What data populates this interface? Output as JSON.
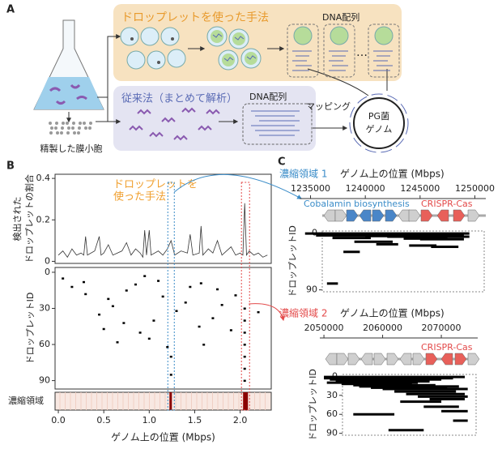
{
  "panel_labels": {
    "a": "A",
    "b": "B",
    "c": "C"
  },
  "panel_a": {
    "droplet_method": "ドロップレットを使った手法",
    "dna_seq_1": "DNA配列",
    "ellipsis": "…",
    "conventional": "従来法（まとめて解析）",
    "dna_seq_2": "DNA配列",
    "mapping": "マッピング",
    "genome_1": "PG菌",
    "genome_2": "ゲノム",
    "vesicles": "精製した膜小胞"
  },
  "chart_data": [
    {
      "type": "line",
      "y_label": [
        "検出された",
        "ドロップレットの割合"
      ],
      "annotation": [
        "ドロップレットを",
        "使った手法"
      ],
      "color": "#333333",
      "x": [
        0,
        0.05,
        0.1,
        0.15,
        0.2,
        0.25,
        0.28,
        0.3,
        0.32,
        0.4,
        0.45,
        0.47,
        0.5,
        0.55,
        0.6,
        0.7,
        0.75,
        0.8,
        0.85,
        0.9,
        0.93,
        0.95,
        0.97,
        1.0,
        1.02,
        1.1,
        1.15,
        1.2,
        1.24,
        1.28,
        1.35,
        1.42,
        1.45,
        1.48,
        1.55,
        1.57,
        1.59,
        1.65,
        1.7,
        1.75,
        1.8,
        1.85,
        1.9,
        1.95,
        2.0,
        2.03,
        2.05,
        2.07,
        2.1,
        2.15,
        2.2,
        2.25,
        2.3
      ],
      "values": [
        0.03,
        0.05,
        0.02,
        0.06,
        0.03,
        0.04,
        0.03,
        0.12,
        0.03,
        0.05,
        0.12,
        0.03,
        0.04,
        0.08,
        0.03,
        0.05,
        0.09,
        0.03,
        0.06,
        0.04,
        0.02,
        0.15,
        0.03,
        0.15,
        0.03,
        0.05,
        0.03,
        0.06,
        0.1,
        0.03,
        0.05,
        0.04,
        0.13,
        0.03,
        0.04,
        0.17,
        0.03,
        0.06,
        0.04,
        0.1,
        0.03,
        0.05,
        0.07,
        0.03,
        0.04,
        0.03,
        0.28,
        0.03,
        0.05,
        0.03,
        0.04,
        0.02,
        0.03
      ],
      "xlim": [
        -0.036,
        2.342
      ],
      "ylim": [
        -0.01,
        0.42
      ],
      "yticks": [
        0,
        0.2,
        0.4
      ]
    },
    {
      "type": "scatter",
      "y_label": "ドロップレットID",
      "color": "#000000",
      "x": [
        0.05,
        0.15,
        0.28,
        0.3,
        0.45,
        0.55,
        0.6,
        0.72,
        0.75,
        0.85,
        0.9,
        0.95,
        1.0,
        1.05,
        1.1,
        1.15,
        1.24,
        1.24,
        1.3,
        1.4,
        1.45,
        1.55,
        1.57,
        1.6,
        1.7,
        1.75,
        1.8,
        1.9,
        1.95,
        2.05,
        2.05,
        2.05,
        2.05,
        2.05,
        2.05,
        2.05,
        2.2,
        0.65,
        0.5,
        1.2
      ],
      "values": [
        5,
        12,
        8,
        18,
        35,
        22,
        28,
        42,
        15,
        10,
        50,
        3,
        55,
        40,
        7,
        20,
        70,
        85,
        32,
        25,
        12,
        45,
        9,
        60,
        38,
        14,
        27,
        48,
        19,
        30,
        40,
        50,
        60,
        70,
        80,
        90,
        33,
        58,
        47,
        62
      ],
      "xlim": [
        -0.036,
        2.342
      ],
      "ylim": [
        -4,
        97
      ],
      "yticks": [
        0,
        30,
        60,
        90
      ]
    },
    {
      "type": "strip",
      "label": "濃縮領域",
      "color": "#8b0000",
      "x": [
        1.24,
        2.05
      ],
      "xlim": [
        -0.036,
        2.342
      ],
      "xticks": [
        {
          "value": 0,
          "label": "0.0"
        },
        0.5,
        {
          "value": 1,
          "label": "1.0"
        },
        1.5,
        {
          "value": 2,
          "label": "2.0"
        }
      ],
      "x_label": "ゲノム上の位置 (Mbps)"
    },
    {
      "type": "reads",
      "region_label": "濃縮領域 1",
      "region_color": "#3a8cc8",
      "x_label": "ゲノム上の位置 (Mbps)",
      "gene_labels": [
        {
          "text": "Cobalamin biosynthesis",
          "color": "#3a8cc8"
        },
        {
          "text": "CRISPR-Cas",
          "color": "#e34a4a"
        }
      ],
      "y_label": "ドロップレットID",
      "color": "#000000",
      "xlim": [
        1234000,
        1251000
      ],
      "xticks": [
        1235000,
        1240000,
        1245000,
        1250000
      ],
      "ylim": [
        -3,
        93
      ],
      "yticks": [
        0,
        90
      ],
      "x_start": [
        1234500,
        1236000,
        1238500,
        1235500,
        1240000,
        1242000,
        1237000,
        1243500,
        1245000,
        1239000,
        1241000,
        1244000,
        1246000,
        1238000,
        1236500
      ],
      "x_end": [
        1249500,
        1246000,
        1249000,
        1243000,
        1248000,
        1249500,
        1240500,
        1247500,
        1249000,
        1242500,
        1243000,
        1246500,
        1248500,
        1239500,
        1237500
      ],
      "values": [
        1,
        2,
        3,
        4,
        5,
        6,
        8,
        9,
        10,
        14,
        18,
        20,
        22,
        30,
        80
      ]
    },
    {
      "type": "reads",
      "region_label": "濃縮領域 2",
      "region_color": "#e34a4a",
      "x_label": "ゲノム上の位置 (Mbps)",
      "gene_labels": [
        {
          "text": "CRISPR-Cas",
          "color": "#e34a4a"
        }
      ],
      "y_label": "ドロップレットID",
      "color": "#000000",
      "xlim": [
        2049300,
        2076200
      ],
      "xticks": [
        2050000,
        2060000,
        2070000
      ],
      "ylim": [
        -3,
        93
      ],
      "yticks": [
        0,
        30,
        60,
        90
      ],
      "x_start": [
        2050000,
        2050000,
        2051000,
        2052000,
        2050500,
        2053000,
        2055000,
        2056000,
        2058000,
        2060000,
        2062000,
        2064000,
        2066000,
        2068000,
        2063000,
        2067000,
        2070000,
        2055000,
        2072000,
        2061000
      ],
      "x_end": [
        2074000,
        2072000,
        2070000,
        2068000,
        2066000,
        2065000,
        2069000,
        2073000,
        2071000,
        2074500,
        2072500,
        2074000,
        2074500,
        2074000,
        2070000,
        2073000,
        2074500,
        2062000,
        2074500,
        2067000
      ],
      "values": [
        1,
        3,
        5,
        8,
        10,
        12,
        14,
        16,
        18,
        20,
        24,
        28,
        32,
        36,
        40,
        48,
        55,
        60,
        70,
        85
      ]
    }
  ]
}
